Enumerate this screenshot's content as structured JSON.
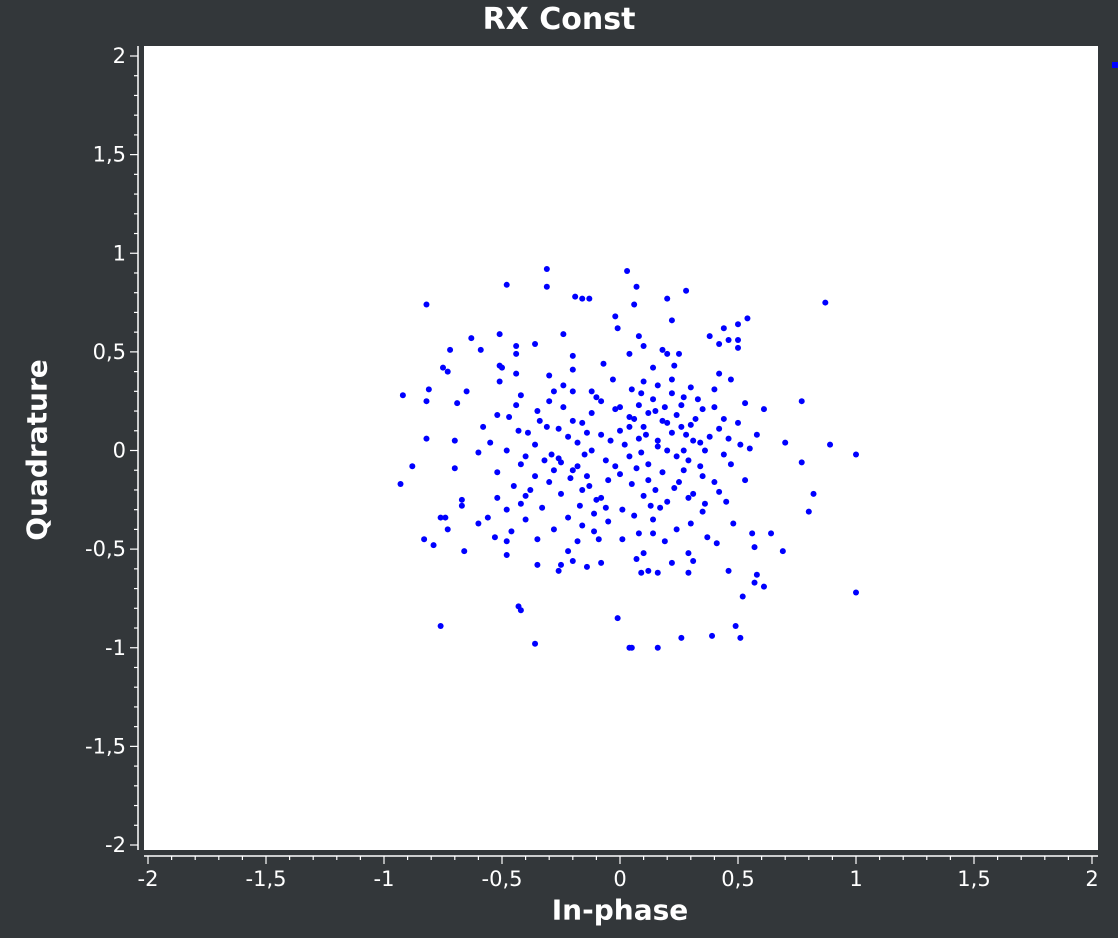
{
  "chart_data": {
    "type": "scatter",
    "title": "RX Const",
    "xlabel": "In-phase",
    "ylabel": "Quadrature",
    "xlim": [
      -2,
      2
    ],
    "ylim": [
      -2,
      2
    ],
    "xticks": [
      "-2",
      "-1,5",
      "-1",
      "-0,5",
      "0",
      "0,5",
      "1",
      "1,5",
      "2"
    ],
    "yticks": [
      "2",
      "1,5",
      "1",
      "0,5",
      "0",
      "-0,5",
      "-1",
      "-1,5",
      "-2"
    ],
    "grid": false,
    "legend": "top-right",
    "background": "#ffffff",
    "frame_color": "#33373a",
    "marker_color": "#0000ff",
    "series": [
      {
        "points": [
          [
            -0.31,
            0.92
          ],
          [
            0.03,
            0.91
          ],
          [
            -0.48,
            0.84
          ],
          [
            -0.31,
            0.83
          ],
          [
            0.07,
            0.83
          ],
          [
            0.28,
            0.81
          ],
          [
            -0.82,
            0.74
          ],
          [
            -0.19,
            0.78
          ],
          [
            -0.16,
            0.77
          ],
          [
            -0.13,
            0.77
          ],
          [
            0.2,
            0.77
          ],
          [
            0.06,
            0.74
          ],
          [
            0.87,
            0.75
          ],
          [
            -0.02,
            0.68
          ],
          [
            0.22,
            0.66
          ],
          [
            0.54,
            0.67
          ],
          [
            0.5,
            0.64
          ],
          [
            0.44,
            0.62
          ],
          [
            -0.01,
            0.62
          ],
          [
            -0.24,
            0.59
          ],
          [
            -0.51,
            0.59
          ],
          [
            -0.63,
            0.57
          ],
          [
            0.08,
            0.58
          ],
          [
            0.38,
            0.58
          ],
          [
            0.46,
            0.56
          ],
          [
            0.5,
            0.56
          ],
          [
            0.42,
            0.54
          ],
          [
            0.5,
            0.52
          ],
          [
            -0.72,
            0.51
          ],
          [
            -0.59,
            0.51
          ],
          [
            -0.44,
            0.53
          ],
          [
            -0.36,
            0.54
          ],
          [
            -0.44,
            0.49
          ],
          [
            0.1,
            0.53
          ],
          [
            0.18,
            0.51
          ],
          [
            0.2,
            0.49
          ],
          [
            0.25,
            0.49
          ],
          [
            0.04,
            0.49
          ],
          [
            -0.2,
            0.48
          ],
          [
            -0.07,
            0.44
          ],
          [
            -0.75,
            0.42
          ],
          [
            -0.73,
            0.4
          ],
          [
            -0.51,
            0.43
          ],
          [
            -0.5,
            0.42
          ],
          [
            -0.44,
            0.39
          ],
          [
            -0.2,
            0.41
          ],
          [
            0.14,
            0.42
          ],
          [
            0.23,
            0.43
          ],
          [
            0.42,
            0.39
          ],
          [
            0.47,
            0.36
          ],
          [
            -0.81,
            0.31
          ],
          [
            -0.65,
            0.3
          ],
          [
            -0.51,
            0.35
          ],
          [
            -0.3,
            0.38
          ],
          [
            -0.03,
            0.36
          ],
          [
            0.1,
            0.35
          ],
          [
            0.3,
            0.32
          ],
          [
            0.4,
            0.31
          ],
          [
            -0.92,
            0.28
          ],
          [
            -0.82,
            0.25
          ],
          [
            -0.69,
            0.24
          ],
          [
            -0.42,
            0.28
          ],
          [
            -0.2,
            0.3
          ],
          [
            -0.1,
            0.27
          ],
          [
            0.05,
            0.31
          ],
          [
            0.22,
            0.29
          ],
          [
            0.53,
            0.24
          ],
          [
            0.77,
            0.25
          ],
          [
            0.61,
            0.21
          ],
          [
            -0.52,
            0.18
          ],
          [
            -0.47,
            0.17
          ],
          [
            -0.35,
            0.2
          ],
          [
            -0.24,
            0.22
          ],
          [
            -0.12,
            0.19
          ],
          [
            0.0,
            0.22
          ],
          [
            0.15,
            0.2
          ],
          [
            0.26,
            0.23
          ],
          [
            0.35,
            0.21
          ],
          [
            -0.58,
            0.12
          ],
          [
            -0.43,
            0.1
          ],
          [
            -0.31,
            0.12
          ],
          [
            -0.16,
            0.14
          ],
          [
            0.04,
            0.12
          ],
          [
            0.18,
            0.15
          ],
          [
            0.3,
            0.13
          ],
          [
            0.42,
            0.11
          ],
          [
            0.5,
            0.14
          ],
          [
            -0.39,
            0.09
          ],
          [
            -0.22,
            0.07
          ],
          [
            -0.08,
            0.08
          ],
          [
            0.08,
            0.06
          ],
          [
            0.22,
            0.09
          ],
          [
            0.38,
            0.07
          ],
          [
            0.58,
            0.08
          ],
          [
            -0.82,
            0.06
          ],
          [
            -0.7,
            0.05
          ],
          [
            -0.55,
            0.04
          ],
          [
            -0.36,
            0.03
          ],
          [
            -0.18,
            0.04
          ],
          [
            0.02,
            0.03
          ],
          [
            0.16,
            0.02
          ],
          [
            0.34,
            0.04
          ],
          [
            0.51,
            0.03
          ],
          [
            0.7,
            0.04
          ],
          [
            0.89,
            0.03
          ],
          [
            -0.6,
            -0.01
          ],
          [
            -0.48,
            0.0
          ],
          [
            -0.29,
            -0.02
          ],
          [
            -0.12,
            0.0
          ],
          [
            0.09,
            -0.01
          ],
          [
            0.27,
            0.0
          ],
          [
            0.44,
            -0.02
          ],
          [
            0.55,
            0.01
          ],
          [
            1.0,
            -0.02
          ],
          [
            -0.88,
            -0.08
          ],
          [
            -0.7,
            -0.09
          ],
          [
            -0.42,
            -0.07
          ],
          [
            -0.25,
            -0.06
          ],
          [
            -0.06,
            -0.05
          ],
          [
            0.12,
            -0.07
          ],
          [
            0.29,
            -0.05
          ],
          [
            0.47,
            -0.07
          ],
          [
            0.77,
            -0.06
          ],
          [
            -0.93,
            -0.17
          ],
          [
            -0.52,
            -0.11
          ],
          [
            -0.36,
            -0.13
          ],
          [
            -0.2,
            -0.1
          ],
          [
            0.0,
            -0.12
          ],
          [
            0.18,
            -0.11
          ],
          [
            0.35,
            -0.13
          ],
          [
            0.53,
            -0.15
          ],
          [
            -0.45,
            -0.18
          ],
          [
            -0.3,
            -0.16
          ],
          [
            -0.13,
            -0.18
          ],
          [
            0.05,
            -0.17
          ],
          [
            0.23,
            -0.19
          ],
          [
            0.4,
            -0.16
          ],
          [
            0.82,
            -0.22
          ],
          [
            -0.67,
            -0.25
          ],
          [
            -0.4,
            -0.23
          ],
          [
            -0.25,
            -0.22
          ],
          [
            -0.08,
            -0.24
          ],
          [
            0.1,
            -0.23
          ],
          [
            0.29,
            -0.24
          ],
          [
            0.45,
            -0.26
          ],
          [
            -0.67,
            -0.28
          ],
          [
            -0.48,
            -0.3
          ],
          [
            -0.33,
            -0.29
          ],
          [
            -0.17,
            -0.28
          ],
          [
            0.01,
            -0.3
          ],
          [
            0.17,
            -0.29
          ],
          [
            0.35,
            -0.31
          ],
          [
            0.8,
            -0.31
          ],
          [
            -0.74,
            -0.34
          ],
          [
            -0.76,
            -0.34
          ],
          [
            -0.56,
            -0.34
          ],
          [
            -0.4,
            -0.35
          ],
          [
            -0.22,
            -0.34
          ],
          [
            -0.05,
            -0.36
          ],
          [
            0.14,
            -0.35
          ],
          [
            0.3,
            -0.37
          ],
          [
            -0.6,
            -0.37
          ],
          [
            -0.73,
            -0.4
          ],
          [
            -0.46,
            -0.41
          ],
          [
            -0.28,
            -0.4
          ],
          [
            -0.11,
            -0.41
          ],
          [
            0.08,
            -0.42
          ],
          [
            0.24,
            -0.4
          ],
          [
            0.48,
            -0.37
          ],
          [
            0.56,
            -0.42
          ],
          [
            0.64,
            -0.42
          ],
          [
            -0.83,
            -0.45
          ],
          [
            -0.79,
            -0.48
          ],
          [
            -0.53,
            -0.44
          ],
          [
            -0.48,
            -0.46
          ],
          [
            -0.35,
            -0.45
          ],
          [
            -0.18,
            -0.46
          ],
          [
            0.01,
            -0.45
          ],
          [
            0.19,
            -0.46
          ],
          [
            0.37,
            -0.44
          ],
          [
            0.41,
            -0.47
          ],
          [
            0.57,
            -0.49
          ],
          [
            -0.66,
            -0.51
          ],
          [
            -0.48,
            -0.53
          ],
          [
            -0.22,
            -0.51
          ],
          [
            0.1,
            -0.52
          ],
          [
            0.29,
            -0.52
          ],
          [
            0.69,
            -0.51
          ],
          [
            -0.35,
            -0.58
          ],
          [
            -0.2,
            -0.56
          ],
          [
            -0.08,
            -0.57
          ],
          [
            0.07,
            -0.55
          ],
          [
            0.22,
            -0.57
          ],
          [
            0.31,
            -0.56
          ],
          [
            -0.25,
            -0.58
          ],
          [
            -0.14,
            -0.59
          ],
          [
            -0.26,
            -0.61
          ],
          [
            0.09,
            -0.62
          ],
          [
            0.12,
            -0.61
          ],
          [
            0.16,
            -0.62
          ],
          [
            0.29,
            -0.62
          ],
          [
            0.46,
            -0.61
          ],
          [
            0.58,
            -0.63
          ],
          [
            0.57,
            -0.67
          ],
          [
            0.61,
            -0.69
          ],
          [
            0.52,
            -0.74
          ],
          [
            1.0,
            -0.72
          ],
          [
            -0.43,
            -0.79
          ],
          [
            -0.42,
            -0.81
          ],
          [
            -0.76,
            -0.89
          ],
          [
            -0.36,
            -0.98
          ],
          [
            -0.01,
            -0.85
          ],
          [
            0.49,
            -0.89
          ],
          [
            0.51,
            -0.95
          ],
          [
            0.39,
            -0.94
          ],
          [
            0.26,
            -0.95
          ],
          [
            0.05,
            -1.0
          ],
          [
            0.04,
            -1.0
          ],
          [
            0.16,
            -1.0
          ],
          [
            -0.12,
            0.3
          ],
          [
            -0.08,
            0.25
          ],
          [
            -0.02,
            0.21
          ],
          [
            0.06,
            0.16
          ],
          [
            0.1,
            0.12
          ],
          [
            0.14,
            0.26
          ],
          [
            0.19,
            0.22
          ],
          [
            0.24,
            0.18
          ],
          [
            0.28,
            0.08
          ],
          [
            0.32,
            0.16
          ],
          [
            0.11,
            0.08
          ],
          [
            0.16,
            0.05
          ],
          [
            0.2,
            0.0
          ],
          [
            0.24,
            -0.03
          ],
          [
            0.26,
            0.12
          ],
          [
            0.2,
            0.14
          ],
          [
            0.12,
            0.19
          ],
          [
            0.08,
            0.23
          ],
          [
            -0.15,
            -0.02
          ],
          [
            -0.18,
            -0.08
          ],
          [
            -0.14,
            -0.13
          ],
          [
            -0.21,
            -0.14
          ],
          [
            -0.16,
            -0.2
          ],
          [
            -0.1,
            -0.25
          ],
          [
            -0.05,
            -0.15
          ],
          [
            -0.02,
            -0.08
          ],
          [
            -0.26,
            -0.04
          ],
          [
            -0.28,
            -0.1
          ],
          [
            -0.32,
            -0.05
          ],
          [
            -0.11,
            -0.32
          ],
          [
            -0.16,
            -0.38
          ],
          [
            0.04,
            -0.03
          ],
          [
            0.07,
            -0.09
          ],
          [
            0.12,
            -0.15
          ],
          [
            0.15,
            -0.2
          ],
          [
            0.2,
            -0.26
          ],
          [
            0.25,
            -0.16
          ],
          [
            0.27,
            -0.1
          ],
          [
            0.31,
            -0.22
          ],
          [
            0.13,
            -0.28
          ],
          [
            0.06,
            -0.33
          ],
          [
            -0.2,
            0.15
          ],
          [
            -0.26,
            0.11
          ],
          [
            -0.3,
            0.25
          ],
          [
            -0.14,
            0.09
          ],
          [
            0.0,
            0.1
          ],
          [
            0.04,
            0.17
          ],
          [
            0.36,
            0.0
          ],
          [
            0.4,
            0.22
          ],
          [
            0.33,
            0.26
          ],
          [
            -0.38,
            -0.2
          ],
          [
            -0.42,
            -0.27
          ],
          [
            0.42,
            -0.21
          ],
          [
            -0.24,
            0.33
          ],
          [
            0.16,
            0.33
          ],
          [
            0.22,
            0.36
          ],
          [
            -0.09,
            -0.45
          ],
          [
            0.14,
            -0.42
          ],
          [
            -0.44,
            0.23
          ],
          [
            -0.4,
            -0.03
          ],
          [
            -0.34,
            0.15
          ],
          [
            0.34,
            -0.08
          ],
          [
            0.44,
            0.16
          ],
          [
            0.31,
            0.05
          ],
          [
            0.46,
            0.06
          ],
          [
            -0.52,
            -0.24
          ],
          [
            0.09,
            0.29
          ],
          [
            -0.04,
            0.05
          ],
          [
            -0.28,
            0.3
          ],
          [
            0.27,
            0.27
          ],
          [
            0.36,
            -0.27
          ],
          [
            -0.06,
            -0.29
          ]
        ]
      }
    ]
  }
}
